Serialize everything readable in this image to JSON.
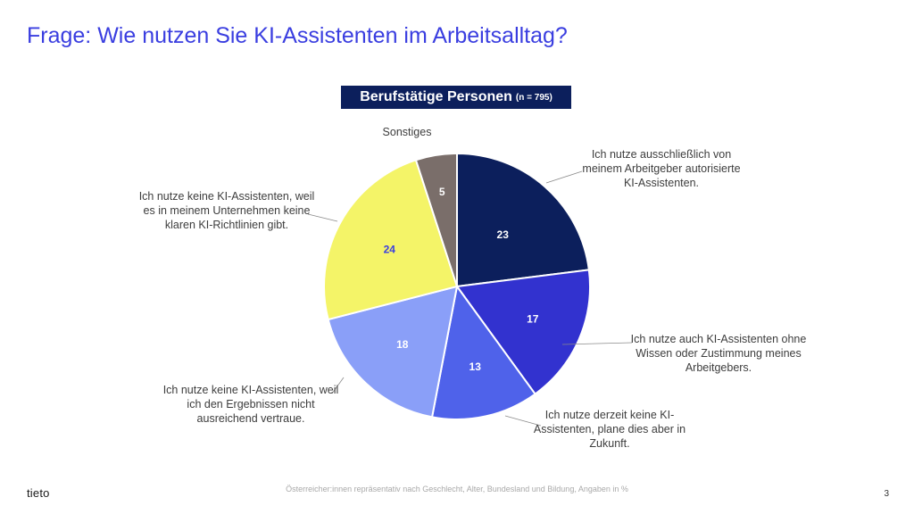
{
  "title": "Frage: Wie nutzen Sie KI-Assistenten im Arbeitsalltag?",
  "chart_header": {
    "main": "Berufstätige Personen",
    "sub": "(n = 795)"
  },
  "chart_data": {
    "type": "pie",
    "unit": "%",
    "slices": [
      {
        "label": "Ich nutze ausschließlich von meinem Arbeitgeber autorisierte KI-Assistenten.",
        "lines": [
          "Ich nutze ausschließlich von",
          "meinem Arbeitgeber autorisierte",
          "KI-Assistenten."
        ],
        "value": 23,
        "color": "#0c1f5c",
        "text_color": "#ffffff"
      },
      {
        "label": "Ich nutze auch KI-Assistenten ohne Wissen oder Zustimmung meines Arbeitgebers.",
        "lines": [
          "Ich nutze auch KI-Assistenten ohne",
          "Wissen oder Zustimmung meines",
          "Arbeitgebers."
        ],
        "value": 17,
        "color": "#3232cf",
        "text_color": "#ffffff"
      },
      {
        "label": "Ich nutze derzeit keine KI-Assistenten, plane dies aber in Zukunft.",
        "lines": [
          "Ich nutze derzeit keine KI-",
          "Assistenten, plane dies aber in",
          "Zukunft."
        ],
        "value": 13,
        "color": "#4f62ea",
        "text_color": "#ffffff"
      },
      {
        "label": "Ich nutze keine KI-Assistenten, weil ich den Ergebnissen nicht ausreichend vertraue.",
        "lines": [
          "Ich nutze keine KI-Assistenten, weil",
          "ich den Ergebnissen nicht",
          "ausreichend vertraue."
        ],
        "value": 18,
        "color": "#8a9ff8",
        "text_color": "#ffffff"
      },
      {
        "label": "Ich nutze keine KI-Assistenten, weil es in meinem Unternehmen keine klaren KI-Richtlinien gibt.",
        "lines": [
          "Ich nutze keine KI-Assistenten, weil",
          "es in meinem Unternehmen keine",
          "klaren KI-Richtlinien gibt."
        ],
        "value": 24,
        "color": "#f4f468",
        "text_color": "#3a3ee0"
      },
      {
        "label": "Sonstiges",
        "lines": [
          "Sonstiges"
        ],
        "value": 5,
        "color": "#7a6e6a",
        "text_color": "#ffffff"
      }
    ]
  },
  "footer": "Österreicher:innen repräsentativ nach Geschlecht, Alter, Bundesland und Bildung, Angaben in %",
  "logo": "tieto",
  "page_number": "3"
}
